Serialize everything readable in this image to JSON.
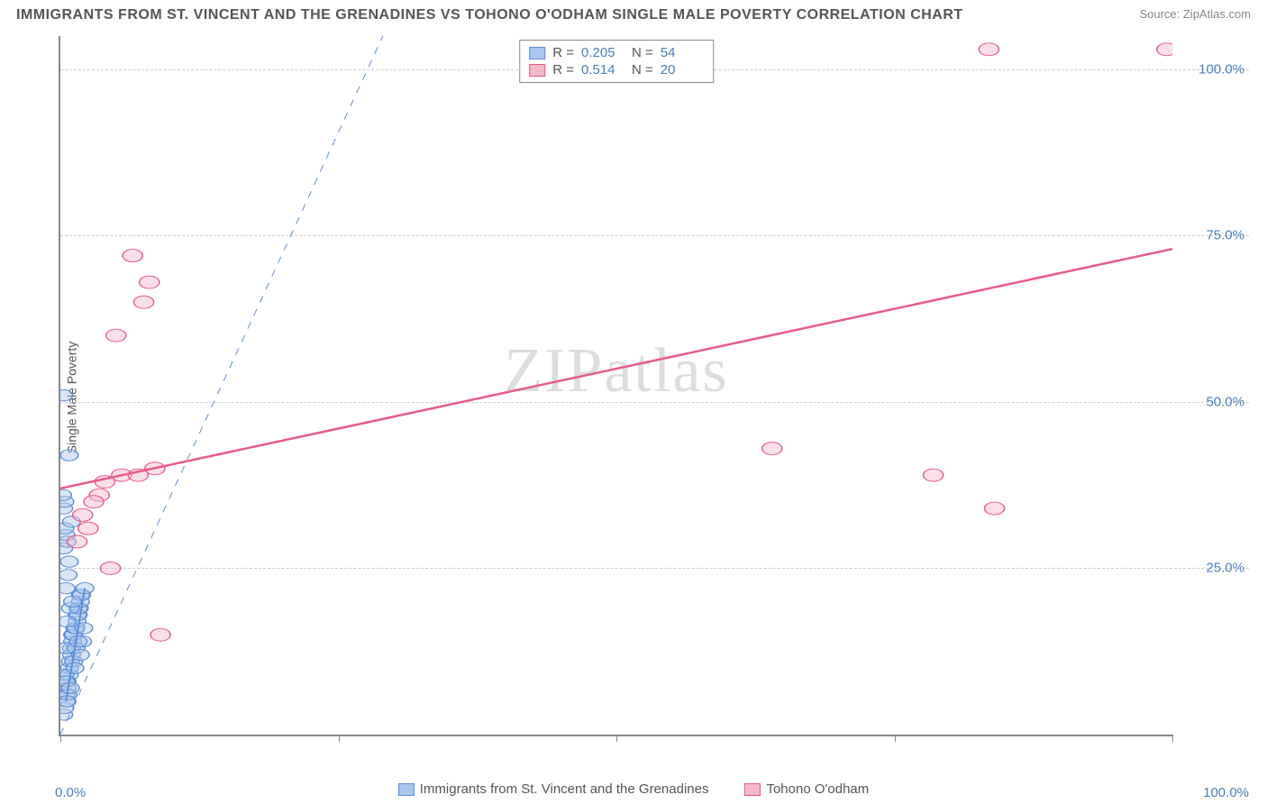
{
  "title": "IMMIGRANTS FROM ST. VINCENT AND THE GRENADINES VS TOHONO O'ODHAM SINGLE MALE POVERTY CORRELATION CHART",
  "source_label": "Source: ZipAtlas.com",
  "watermark": "ZIPatlas",
  "y_axis_label": "Single Male Poverty",
  "chart": {
    "type": "scatter",
    "xlim": [
      0,
      100
    ],
    "ylim": [
      0,
      105
    ],
    "x_ticks": [
      0,
      25,
      50,
      75,
      100
    ],
    "x_tick_labels": {
      "0": "0.0%",
      "100": "100.0%"
    },
    "y_ticks": [
      25,
      50,
      75,
      100
    ],
    "y_tick_labels": {
      "25": "25.0%",
      "50": "50.0%",
      "75": "75.0%",
      "100": "100.0%"
    },
    "grid_color": "#cccccc",
    "axis_color": "#888888",
    "background": "#ffffff"
  },
  "series": [
    {
      "name": "Immigrants from St. Vincent and the Grenadines",
      "fill": "#a8c6ec",
      "stroke": "#5b8dd6",
      "fill_opacity": 0.45,
      "marker_radius": 8,
      "R": "0.205",
      "N": "54",
      "trend": {
        "x1": 0.5,
        "y1": 5,
        "x2": 2.2,
        "y2": 22,
        "dashed": false,
        "color": "#5b8dd6",
        "width": 2
      },
      "trend_ext": {
        "x1": 0,
        "y1": 0,
        "x2": 29,
        "y2": 105,
        "dashed": true,
        "color": "#5b8dd6",
        "width": 1
      },
      "points": [
        [
          0.3,
          3
        ],
        [
          0.4,
          4
        ],
        [
          0.5,
          5
        ],
        [
          0.5,
          6
        ],
        [
          0.6,
          7
        ],
        [
          0.6,
          8
        ],
        [
          0.8,
          9
        ],
        [
          0.8,
          10
        ],
        [
          0.9,
          11
        ],
        [
          1.0,
          12
        ],
        [
          1.0,
          13
        ],
        [
          1.1,
          14
        ],
        [
          1.1,
          15
        ],
        [
          1.2,
          15
        ],
        [
          1.3,
          16
        ],
        [
          1.4,
          16
        ],
        [
          1.5,
          17
        ],
        [
          1.5,
          18
        ],
        [
          1.6,
          18
        ],
        [
          1.6,
          19
        ],
        [
          1.7,
          19
        ],
        [
          1.8,
          20
        ],
        [
          1.8,
          21
        ],
        [
          1.9,
          21
        ],
        [
          2.0,
          14
        ],
        [
          2.1,
          16
        ],
        [
          2.2,
          22
        ],
        [
          0.5,
          22
        ],
        [
          0.7,
          24
        ],
        [
          0.8,
          26
        ],
        [
          0.3,
          28
        ],
        [
          0.6,
          29
        ],
        [
          0.5,
          30
        ],
        [
          0.4,
          31
        ],
        [
          1.0,
          32
        ],
        [
          0.3,
          34
        ],
        [
          0.4,
          35
        ],
        [
          0.2,
          36
        ],
        [
          0.8,
          42
        ],
        [
          0.3,
          51
        ],
        [
          0.5,
          13
        ],
        [
          1.2,
          11
        ],
        [
          1.4,
          13
        ],
        [
          1.6,
          14
        ],
        [
          1.8,
          12
        ],
        [
          0.6,
          17
        ],
        [
          0.9,
          19
        ],
        [
          1.1,
          20
        ],
        [
          0.4,
          9
        ],
        [
          0.7,
          6
        ],
        [
          1.3,
          10
        ],
        [
          0.5,
          8
        ],
        [
          0.9,
          7
        ],
        [
          0.6,
          5
        ]
      ]
    },
    {
      "name": "Tohono O'odham",
      "fill": "#f5b8c9",
      "stroke": "#e85a8a",
      "fill_opacity": 0.45,
      "marker_radius": 9,
      "R": "0.514",
      "N": "20",
      "trend": {
        "x1": 0,
        "y1": 37,
        "x2": 100,
        "y2": 73,
        "dashed": false,
        "color": "#e85a8a",
        "width": 2.5
      },
      "points": [
        [
          1.5,
          29
        ],
        [
          2.5,
          31
        ],
        [
          2.0,
          33
        ],
        [
          3.5,
          36
        ],
        [
          4.0,
          38
        ],
        [
          5.5,
          39
        ],
        [
          7.0,
          39
        ],
        [
          8.5,
          40
        ],
        [
          4.5,
          25
        ],
        [
          9.0,
          15
        ],
        [
          5.0,
          60
        ],
        [
          7.5,
          65
        ],
        [
          8.0,
          68
        ],
        [
          6.5,
          72
        ],
        [
          64.0,
          43
        ],
        [
          78.5,
          39
        ],
        [
          84.0,
          34
        ],
        [
          83.5,
          103
        ],
        [
          99.5,
          103
        ],
        [
          3.0,
          35
        ]
      ]
    }
  ],
  "legend_top": {
    "rows": [
      {
        "swatch_fill": "#a8c6ec",
        "swatch_stroke": "#5b8dd6",
        "R": "0.205",
        "N": "54"
      },
      {
        "swatch_fill": "#f5b8c9",
        "swatch_stroke": "#e85a8a",
        "R": "0.514",
        "N": "20"
      }
    ]
  },
  "legend_bottom": [
    {
      "swatch_fill": "#a8c6ec",
      "swatch_stroke": "#5b8dd6",
      "label": "Immigrants from St. Vincent and the Grenadines"
    },
    {
      "swatch_fill": "#f5b8c9",
      "swatch_stroke": "#e85a8a",
      "label": "Tohono O'odham"
    }
  ]
}
